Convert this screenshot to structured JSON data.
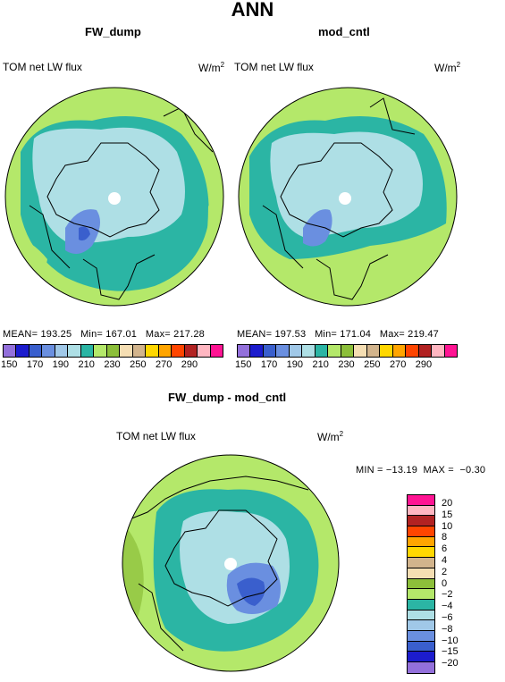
{
  "title": "ANN",
  "panels": [
    {
      "name": "FW_dump",
      "left_label": "TOM net LW flux",
      "unit": "W/m",
      "unit_sup": "2",
      "stats": "MEAN= 193.25   Min= 167.01   Max= 217.28"
    },
    {
      "name": "mod_cntl",
      "left_label": "TOM net LW flux",
      "unit": "W/m",
      "unit_sup": "2",
      "stats": "MEAN= 197.53   Min= 171.04   Max= 219.47"
    }
  ],
  "diff_panel": {
    "name": "FW_dump - mod_cntl",
    "left_label": "TOM net LW flux",
    "unit": "W/m",
    "unit_sup": "2",
    "stats": "MIN = −13.19  MAX =  −0.30"
  },
  "colorbar_abs": {
    "colors": [
      "#9370db",
      "#1c1ccd",
      "#3a5fcd",
      "#6a8fe0",
      "#a0c8e8",
      "#aedfe5",
      "#2bb5a4",
      "#b4e86a",
      "#8cbf3a",
      "#f5deb3",
      "#d2b48c",
      "#ffd700",
      "#ffa500",
      "#ff4500",
      "#b22222",
      "#ffb6c1",
      "#ff1493"
    ],
    "tick_labels": [
      "150",
      "170",
      "190",
      "210",
      "230",
      "250",
      "270",
      "290"
    ]
  },
  "colorbar_diff": {
    "colors": [
      "#ff1493",
      "#ffb6c1",
      "#b22222",
      "#ff4500",
      "#ffa500",
      "#ffd700",
      "#d2b48c",
      "#f5deb3",
      "#8cbf3a",
      "#b4e86a",
      "#2bb5a4",
      "#aedfe5",
      "#a0c8e8",
      "#6a8fe0",
      "#3a5fcd",
      "#1c1ccd",
      "#9370db"
    ],
    "tick_labels": [
      "20",
      "15",
      "10",
      "8",
      "6",
      "4",
      "2",
      "0",
      "−2",
      "−4",
      "−6",
      "−8",
      "−10",
      "−15",
      "−20"
    ]
  },
  "map_colors": {
    "outer": "#b4e86a",
    "ring": "#2bb5a4",
    "inner": "#aedfe5",
    "blue1": "#6a8fe0",
    "blue2": "#3a5fcd",
    "tan": "#f5deb3",
    "dark": "#8cbf3a"
  }
}
